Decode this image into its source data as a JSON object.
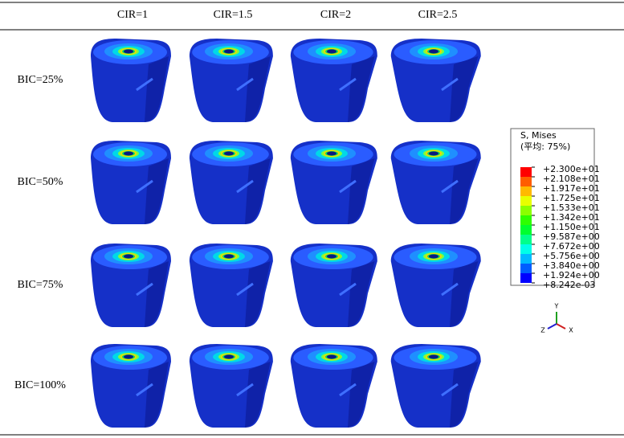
{
  "columns": [
    "CIR=1",
    "CIR=1.5",
    "CIR=2",
    "CIR=2.5"
  ],
  "rows": [
    "BIC=25%",
    "BIC=50%",
    "BIC=75%",
    "BIC=100%"
  ],
  "legend": {
    "title": "S, Mises",
    "subtitle": "(平均: 75%)",
    "labels": [
      "+2.300e+01",
      "+2.108e+01",
      "+1.917e+01",
      "+1.725e+01",
      "+1.533e+01",
      "+1.342e+01",
      "+1.150e+01",
      "+9.587e+00",
      "+7.672e+00",
      "+5.756e+00",
      "+3.840e+00",
      "+1.924e+00",
      "+8.242e-03"
    ],
    "colors": [
      "#ff0000",
      "#ff5d00",
      "#ffb900",
      "#e8ff00",
      "#8bff00",
      "#2eff00",
      "#00ff2e",
      "#00ff8b",
      "#00ffe8",
      "#00b9ff",
      "#005dff",
      "#0000ff"
    ]
  },
  "triad": {
    "y": "Y",
    "z": "Z",
    "x": "X"
  }
}
